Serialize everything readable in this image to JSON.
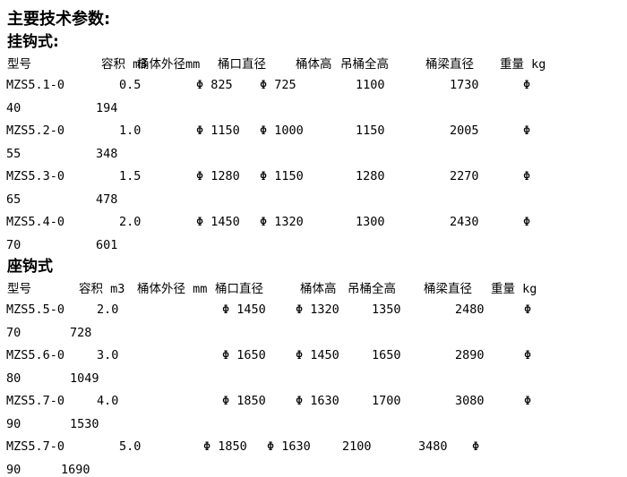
{
  "page": {
    "background_color": "#ffffff",
    "text_color": "#000000"
  },
  "document": {
    "title": "主要技术参数:",
    "sections": [
      {
        "heading": "挂钩式:",
        "columns": [
          "型号",
          "容积 m3",
          "桶体外径mm",
          "桶口直径",
          "桶体高",
          "吊桶全高",
          "桶梁直径",
          "重量 kg"
        ],
        "rows": [
          {
            "model": "MZS5.1-0",
            "capacity": "0.5",
            "outer_diameter": "Φ 825",
            "mouth_diameter": "Φ 725",
            "body_height": "1100",
            "total_height": "1730",
            "beam_prefix": "Φ",
            "beam_value": "40",
            "weight_value": "194"
          },
          {
            "model": "MZS5.2-0",
            "capacity": "1.0",
            "outer_diameter": "Φ 1150",
            "mouth_diameter": "Φ 1000",
            "body_height": "1150",
            "total_height": "2005",
            "beam_prefix": "Φ",
            "beam_value": "55",
            "weight_value": "348"
          },
          {
            "model": "MZS5.3-0",
            "capacity": "1.5",
            "outer_diameter": "Φ 1280",
            "mouth_diameter": "Φ 1150",
            "body_height": "1280",
            "total_height": "2270",
            "beam_prefix": "Φ",
            "beam_value": "65",
            "weight_value": "478"
          },
          {
            "model": "MZS5.4-0",
            "capacity": "2.0",
            "outer_diameter": "Φ 1450",
            "mouth_diameter": "Φ 1320",
            "body_height": "1300",
            "total_height": "2430",
            "beam_prefix": "Φ",
            "beam_value": "70",
            "weight_value": "601"
          }
        ]
      },
      {
        "heading": "座钩式",
        "columns": [
          "型号",
          "容积 m3",
          "桶体外径 mm",
          "桶口直径",
          "桶体高",
          "吊桶全高",
          "桶梁直径",
          "重量 kg"
        ],
        "rows": [
          {
            "model": "MZS5.5-0",
            "capacity": "2.0",
            "outer_diameter": "Φ 1450",
            "mouth_diameter": "Φ 1320",
            "body_height": "1350",
            "total_height": "2480",
            "beam_prefix": "Φ",
            "beam_value": "70",
            "weight_value": "728"
          },
          {
            "model": "MZS5.6-0",
            "capacity": "3.0",
            "outer_diameter": "Φ 1650",
            "mouth_diameter": "Φ 1450",
            "body_height": "1650",
            "total_height": "2890",
            "beam_prefix": "Φ",
            "beam_value": "80",
            "weight_value": "1049"
          },
          {
            "model": "MZS5.7-0",
            "capacity": "4.0",
            "outer_diameter": "Φ 1850",
            "mouth_diameter": "Φ 1630",
            "body_height": "1700",
            "total_height": "3080",
            "beam_prefix": "Φ",
            "beam_value": "90",
            "weight_value": "1530"
          },
          {
            "model": "MZS5.7-0",
            "capacity": "5.0",
            "outer_diameter": "Φ 1850",
            "mouth_diameter": "Φ 1630",
            "body_height": "2100",
            "total_height": "3480",
            "beam_prefix": "Φ",
            "beam_value": "90",
            "weight_value": "1690"
          }
        ]
      }
    ]
  }
}
